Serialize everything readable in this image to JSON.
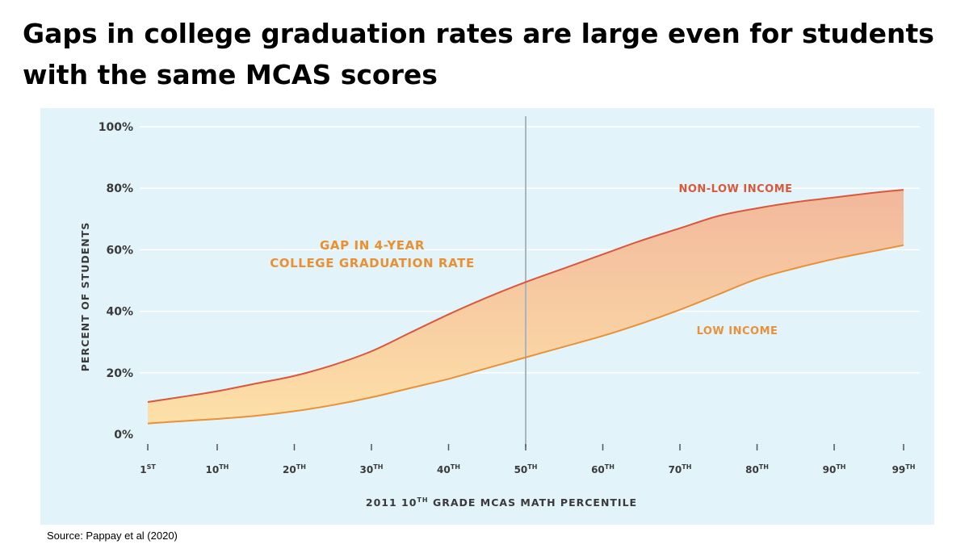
{
  "title": "Gaps in college graduation rates are large even for students with the same MCAS scores",
  "source": "Source:  Pappay et al (2020)",
  "colors": {
    "panel": "#e3f3fa",
    "non_low_income": "#d9573a",
    "low_income": "#e99139",
    "gap_label": "#e89032",
    "band_top": "#f2b89c",
    "band_bottom": "#fde0a8",
    "reference_line": "#a9b4bd",
    "axis": "#555555",
    "grid": "#ffffff"
  },
  "chart_data": {
    "type": "area",
    "title": "",
    "ylabel": "PERCENT OF STUDENTS",
    "xlabel": "2011 10TH GRADE MCAS MATH PERCENTILE",
    "ylim": [
      0,
      100
    ],
    "y_ticks": [
      "0%",
      "20%",
      "40%",
      "60%",
      "80%",
      "100%"
    ],
    "x_ticks": [
      {
        "x": 1,
        "num": "1",
        "sup": "ST"
      },
      {
        "x": 10,
        "num": "10",
        "sup": "TH"
      },
      {
        "x": 20,
        "num": "20",
        "sup": "TH"
      },
      {
        "x": 30,
        "num": "30",
        "sup": "TH"
      },
      {
        "x": 40,
        "num": "40",
        "sup": "TH"
      },
      {
        "x": 50,
        "num": "50",
        "sup": "TH"
      },
      {
        "x": 60,
        "num": "60",
        "sup": "TH"
      },
      {
        "x": 70,
        "num": "70",
        "sup": "TH"
      },
      {
        "x": 80,
        "num": "80",
        "sup": "TH"
      },
      {
        "x": 90,
        "num": "90",
        "sup": "TH"
      },
      {
        "x": 99,
        "num": "99",
        "sup": "TH"
      }
    ],
    "xlim": [
      1,
      99
    ],
    "reference_line_x": 50,
    "grid": true,
    "series": [
      {
        "name": "NON-LOW INCOME",
        "x": [
          1,
          5,
          10,
          15,
          20,
          25,
          30,
          35,
          40,
          45,
          50,
          55,
          60,
          65,
          70,
          75,
          80,
          85,
          90,
          95,
          99
        ],
        "values": [
          10.5,
          12,
          14,
          16.5,
          19,
          22.5,
          27,
          33,
          39,
          44.5,
          49.5,
          54,
          58.5,
          63,
          67,
          71,
          73.5,
          75.5,
          77,
          78.5,
          79.5
        ]
      },
      {
        "name": "LOW INCOME",
        "x": [
          1,
          5,
          10,
          15,
          20,
          25,
          30,
          35,
          40,
          45,
          50,
          55,
          60,
          65,
          70,
          75,
          80,
          85,
          90,
          95,
          99
        ],
        "values": [
          3.5,
          4.2,
          5,
          6,
          7.5,
          9.5,
          12,
          15,
          18,
          21.5,
          25,
          28.5,
          32,
          36,
          40.5,
          45.5,
          50.5,
          54,
          57,
          59.5,
          61.5
        ]
      }
    ],
    "annotations": {
      "gap_line1": "GAP IN 4-YEAR",
      "gap_line2": "COLLEGE GRADUATION RATE",
      "non_low_income_label": "NON-LOW INCOME",
      "low_income_label": "LOW INCOME"
    },
    "xlabel_parts": {
      "pre": "2011 10",
      "sup": "TH",
      "post": " GRADE MCAS MATH PERCENTILE"
    }
  }
}
